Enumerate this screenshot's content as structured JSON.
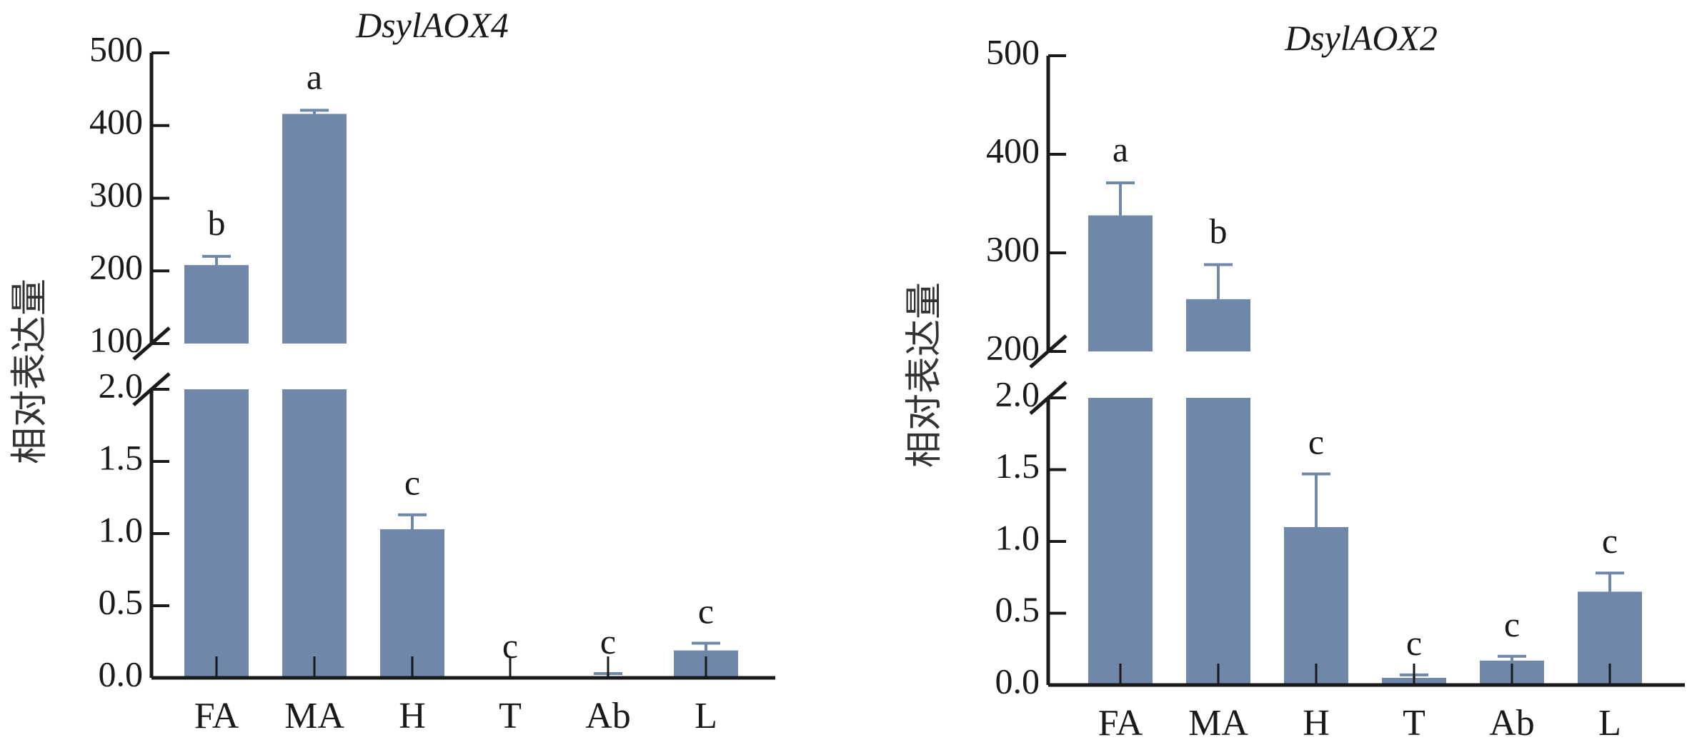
{
  "colors": {
    "bar": "#6f87a9",
    "error_bar": "#6f87a9",
    "axis": "#1a1a1a",
    "text": "#1a1a1a"
  },
  "chart_data": [
    {
      "type": "bar",
      "title": "DsylAOX4",
      "ylabel": "相对表达量",
      "categories": [
        "FA",
        "MA",
        "H",
        "T",
        "Ab",
        "L"
      ],
      "values": [
        208,
        416,
        1.03,
        0.0,
        0.01,
        0.19
      ],
      "errors": [
        12,
        5,
        0.1,
        0.0,
        0.02,
        0.05
      ],
      "letters": [
        "b",
        "a",
        "c",
        "c",
        "c",
        "c"
      ],
      "y_axis_break": {
        "lower_range": [
          0,
          2.0
        ],
        "upper_range": [
          100,
          500
        ],
        "lower_ticks": [
          "0.0",
          "0.5",
          "1.0",
          "1.5",
          "2.0"
        ],
        "upper_ticks": [
          "100",
          "200",
          "300",
          "400",
          "500"
        ]
      }
    },
    {
      "type": "bar",
      "title": "DsylAOX2",
      "ylabel": "相对表达量",
      "categories": [
        "FA",
        "MA",
        "H",
        "T",
        "Ab",
        "L"
      ],
      "values": [
        338,
        253,
        1.1,
        0.05,
        0.17,
        0.65
      ],
      "errors": [
        33,
        35,
        0.37,
        0.02,
        0.03,
        0.13
      ],
      "letters": [
        "a",
        "b",
        "c",
        "c",
        "c",
        "c"
      ],
      "y_axis_break": {
        "lower_range": [
          0,
          2.0
        ],
        "upper_range": [
          200,
          500
        ],
        "lower_ticks": [
          "0.0",
          "0.5",
          "1.0",
          "1.5",
          "2.0"
        ],
        "upper_ticks": [
          "200",
          "300",
          "400",
          "500"
        ]
      }
    }
  ]
}
